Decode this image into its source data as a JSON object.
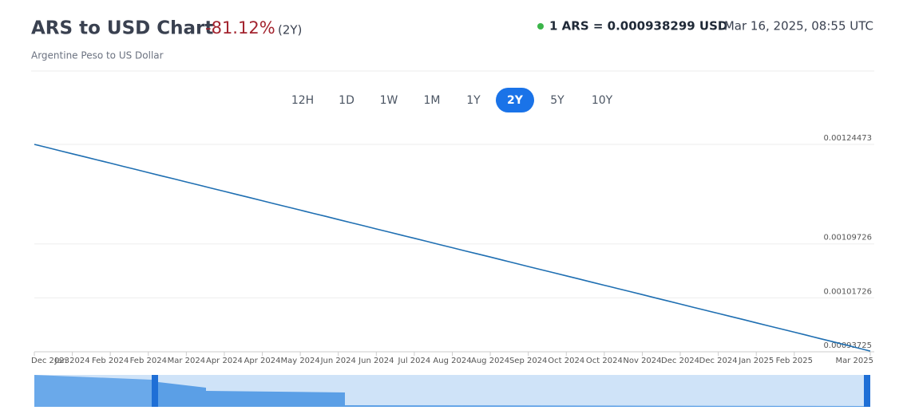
{
  "chart_data": {
    "type": "line",
    "title": "ARS to USD Chart",
    "change": "-81.12%",
    "period": "(2Y)",
    "subtitle": "Argentine Peso to US Dollar",
    "rate": "1 ARS = 0.000938299 USD",
    "timestamp": "Mar 16, 2025, 08:55 UTC",
    "range_buttons": [
      "12H",
      "1D",
      "1W",
      "1M",
      "1Y",
      "2Y",
      "5Y",
      "10Y"
    ],
    "active_range": "2Y",
    "categories": [
      "Dec 2023",
      null,
      null,
      "Jan 2024",
      null,
      null,
      "Feb 2024",
      null,
      null,
      "Feb 2024",
      null,
      null,
      "Mar 2024",
      null,
      null,
      "Apr 2024",
      null,
      null,
      "Apr 2024",
      null,
      null,
      "May 2024",
      null,
      null,
      "Jun 2024",
      null,
      null,
      "Jun 2024",
      null,
      null,
      "Jul 2024",
      null,
      null,
      "Aug 2024",
      null,
      null,
      "Aug 2024",
      null,
      null,
      "Sep 2024",
      null,
      null,
      "Oct 2024",
      null,
      null,
      "Oct 2024",
      null,
      null,
      "Nov 2024",
      null,
      null,
      "Dec 2024",
      null,
      null,
      "Dec 2024",
      null,
      null,
      "Jan 2025",
      null,
      null,
      "Feb 2025",
      null,
      null,
      null,
      null,
      null,
      "Mar 2025"
    ],
    "series": [
      {
        "name": "ARS/USD",
        "color": "#1f6fb2",
        "values": [
          0.0012447,
          0.0012401,
          0.0012354,
          0.0012308,
          0.0012261,
          0.0012215,
          0.0012169,
          0.0012122,
          0.0012076,
          0.0012029,
          0.0011983,
          0.0011937,
          0.001189,
          0.0011844,
          0.0011797,
          0.0011751,
          0.0011705,
          0.0011658,
          0.0011612,
          0.0011565,
          0.0011519,
          0.0011473,
          0.0011426,
          0.001138,
          0.0011333,
          0.0011287,
          0.0011241,
          0.0011194,
          0.0011148,
          0.0011101,
          0.0011055,
          0.0011009,
          0.0010962,
          0.0010916,
          0.0010869,
          0.0010823,
          0.0010777,
          0.001073,
          0.0010684,
          0.0010637,
          0.0010591,
          0.0010545,
          0.0010498,
          0.0010452,
          0.0010405,
          0.0010359,
          0.0010313,
          0.0010266,
          0.001022,
          0.0010173,
          0.0010127,
          0.0010081,
          0.0010034,
          0.0009988,
          0.0009941,
          0.0009895,
          0.0009849,
          0.0009802,
          0.0009756,
          0.0009709,
          0.0009663,
          0.0009617,
          0.000957,
          0.0009524,
          0.0009477,
          0.0009431,
          0.0009383
        ]
      }
    ],
    "ylim": [
      0.00093725,
      0.00125773
    ],
    "yticks": [
      0.00124473,
      0.00109726,
      0.00101726,
      0.00093725
    ],
    "grid": true
  }
}
